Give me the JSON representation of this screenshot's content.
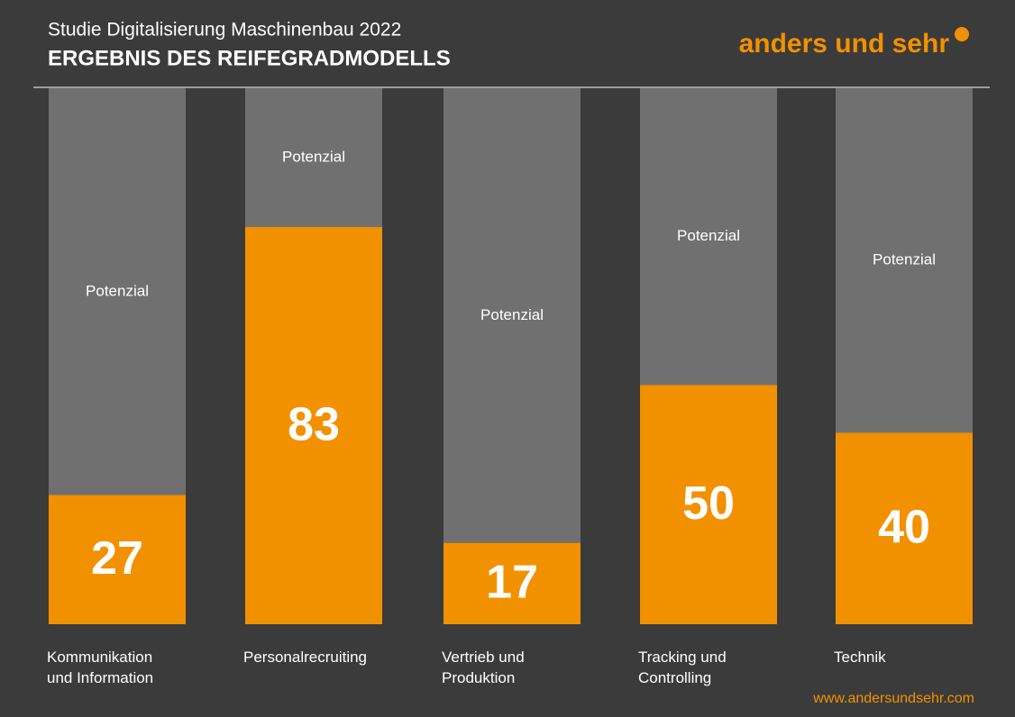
{
  "subtitle": "Studie Digitalisierung Maschinenbau 2022",
  "logo": "anders und sehr",
  "url": "www.andersundsehr.com",
  "chart_data": {
    "type": "bar",
    "title": "ERGEBNIS DES REIFEGRADMODELLS",
    "categories": [
      "Kommunikation und Information",
      "Personalrecruiting",
      "Vertrieb und Produktion",
      "Tracking und Controlling",
      "Technik"
    ],
    "values": [
      27,
      83,
      17,
      50,
      40
    ],
    "color": "#f29100",
    "track_label": "Potenzial",
    "track_color": "#707070",
    "ylim": [
      0,
      112
    ]
  }
}
